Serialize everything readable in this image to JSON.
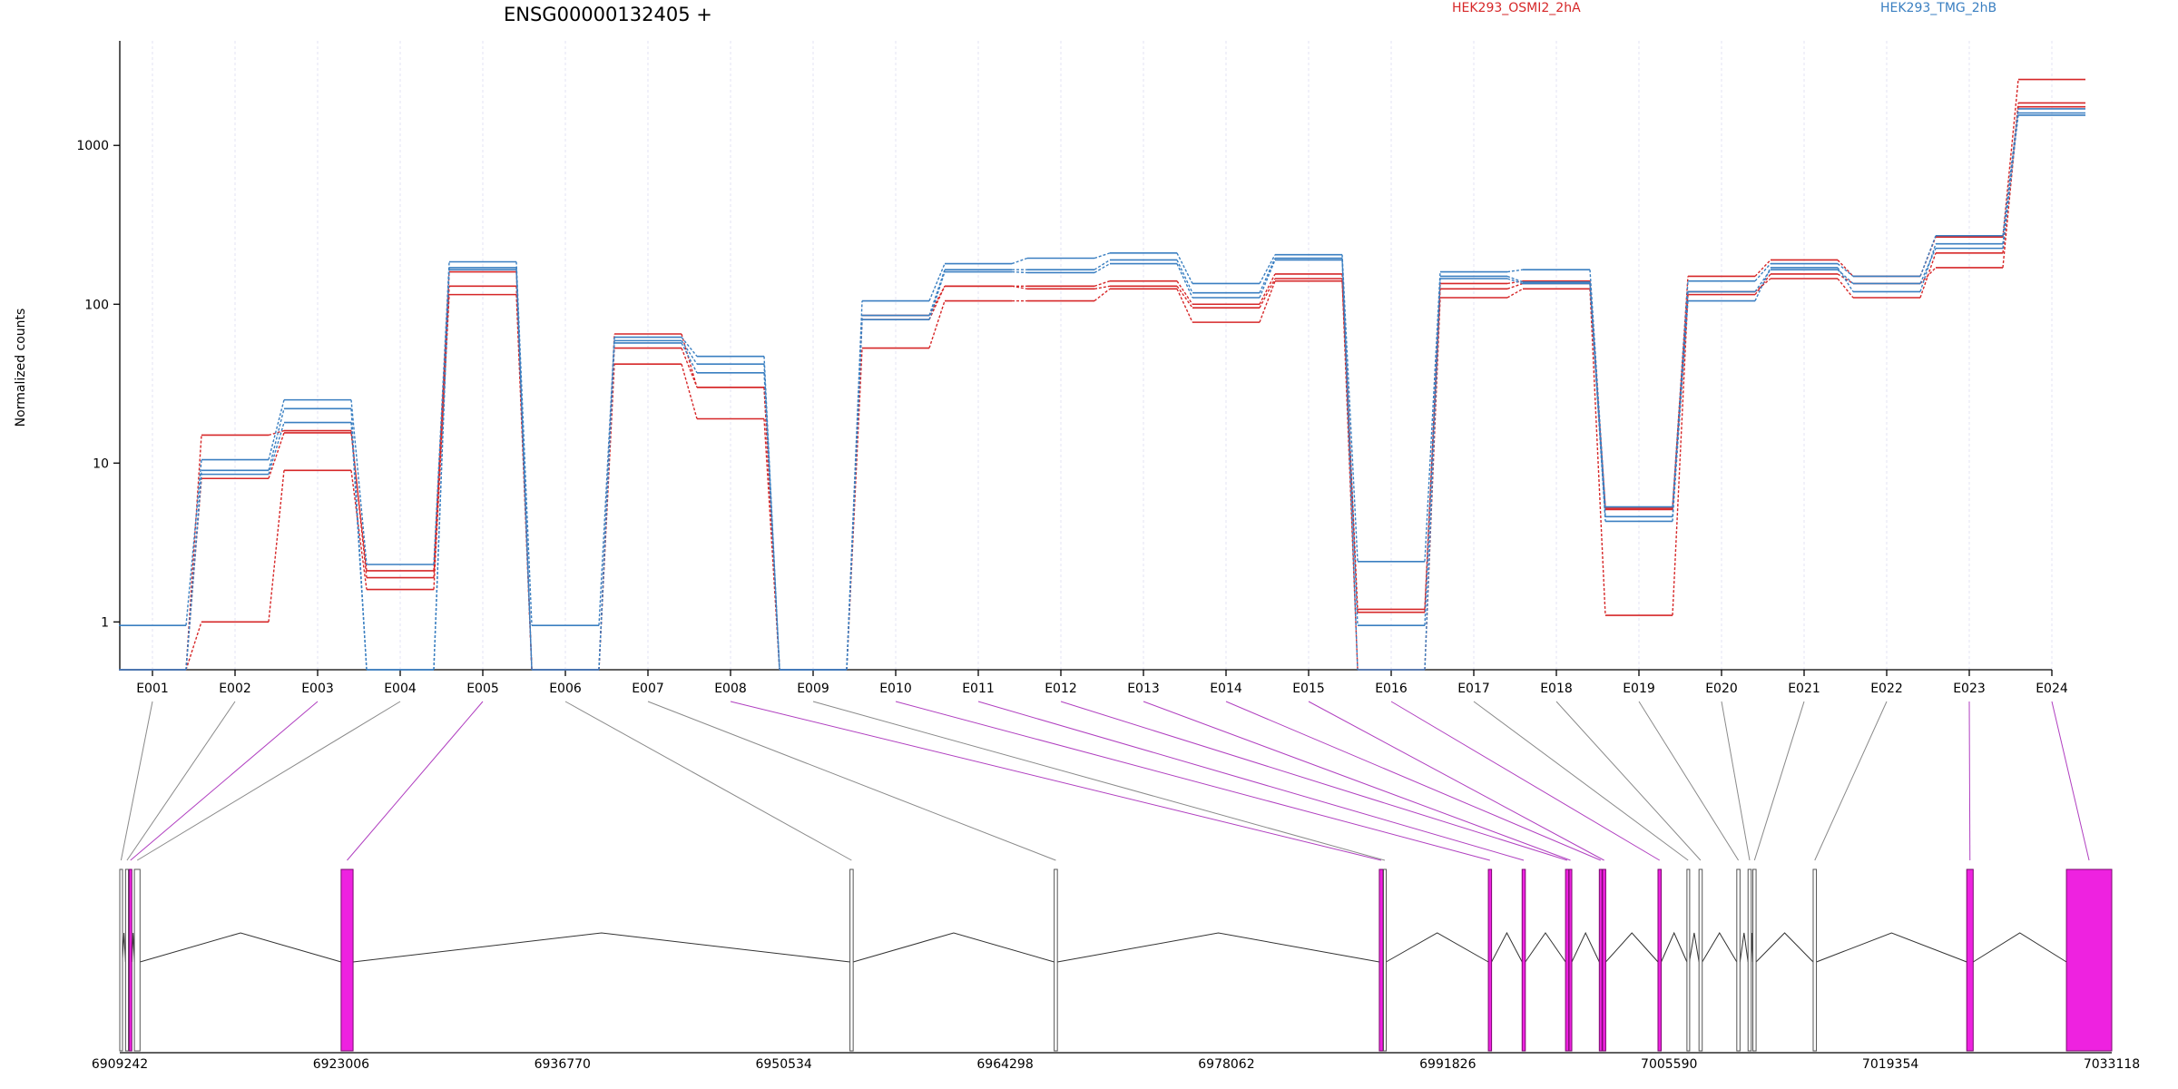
{
  "chart_data": {
    "type": "line",
    "title": "ENSG00000132405 +",
    "ylabel": "Normalized counts",
    "yscale": "log",
    "ylim": [
      0.5,
      3500
    ],
    "yticks": [
      "1",
      "10",
      "100",
      "1000"
    ],
    "categories": [
      "E001",
      "E002",
      "E003",
      "E004",
      "E005",
      "E006",
      "E007",
      "E008",
      "E009",
      "E010",
      "E011",
      "E012",
      "E013",
      "E014",
      "E015",
      "E016",
      "E017",
      "E018",
      "E019",
      "E020",
      "E021",
      "E022",
      "E023",
      "E024"
    ],
    "colors": {
      "HEK293_OSMI2_2hA": "#d62728",
      "HEK293_TMG_2hB": "#3a7fc1",
      "exon_highlight": "#ee22e0",
      "exon_default": "#bbbbbb",
      "gridline": "#e3e3f3"
    },
    "legend": [
      "HEK293_OSMI2_2hA",
      "HEK293_TMG_2hB"
    ],
    "series": [
      {
        "group": "HEK293_OSMI2_2hA",
        "values": [
          0.5,
          15,
          16,
          1.9,
          130,
          0.5,
          65,
          30,
          0.5,
          80,
          130,
          130,
          140,
          100,
          155,
          1.2,
          135,
          140,
          5.2,
          150,
          190,
          150,
          265,
          2600
        ]
      },
      {
        "group": "HEK293_OSMI2_2hA",
        "values": [
          0.5,
          8,
          15.5,
          2.1,
          160,
          0.5,
          53,
          30,
          0.5,
          85,
          130,
          125,
          130,
          95,
          145,
          1.15,
          125,
          135,
          5.1,
          120,
          145,
          110,
          210,
          1850
        ]
      },
      {
        "group": "HEK293_OSMI2_2hA",
        "values": [
          0.5,
          1,
          9,
          1.6,
          115,
          0.5,
          42,
          19,
          0.5,
          53,
          105,
          105,
          125,
          77,
          140,
          0.5,
          110,
          125,
          1.1,
          115,
          155,
          135,
          170,
          1750
        ]
      },
      {
        "group": "HEK293_TMG_2hB",
        "values": [
          0.95,
          10.5,
          25,
          2.3,
          185,
          0.95,
          62,
          47,
          0.5,
          105,
          180,
          195,
          210,
          135,
          205,
          2.4,
          160,
          165,
          5.3,
          140,
          180,
          150,
          270,
          1700
        ]
      },
      {
        "group": "HEK293_TMG_2hB",
        "values": [
          0.5,
          9,
          22,
          0.5,
          170,
          0.5,
          59,
          42,
          0.5,
          85,
          165,
          165,
          190,
          118,
          195,
          0.95,
          150,
          138,
          4.6,
          105,
          170,
          120,
          240,
          1550
        ]
      },
      {
        "group": "HEK293_TMG_2hB",
        "values": [
          0.5,
          8.5,
          18,
          0.5,
          165,
          0.5,
          57,
          37,
          0.5,
          80,
          160,
          158,
          180,
          110,
          190,
          0.5,
          145,
          135,
          4.3,
          120,
          165,
          135,
          225,
          1600
        ]
      }
    ],
    "genomic_axis": {
      "start": 6909242,
      "end": 7033118,
      "tick_labels": [
        "6909242",
        "6923006",
        "6936770",
        "6950534",
        "6964298",
        "6978062",
        "6991826",
        "7005590",
        "7019354",
        "7033118"
      ]
    },
    "exons": [
      {
        "id": "E001",
        "start": 6909242,
        "end": 6909400,
        "highlight": false
      },
      {
        "id": "E002",
        "start": 6909600,
        "end": 6909780,
        "highlight": false
      },
      {
        "id": "E003",
        "start": 6909820,
        "end": 6909990,
        "highlight": true
      },
      {
        "id": "E004",
        "start": 6910150,
        "end": 6910500,
        "highlight": false
      },
      {
        "id": "E005",
        "start": 6923006,
        "end": 6923750,
        "highlight": true
      },
      {
        "id": "E006",
        "start": 6954650,
        "end": 6954850,
        "highlight": false
      },
      {
        "id": "E007",
        "start": 6967350,
        "end": 6967550,
        "highlight": false
      },
      {
        "id": "E008",
        "start": 6987570,
        "end": 6987800,
        "highlight": true
      },
      {
        "id": "E009",
        "start": 6987830,
        "end": 6987990,
        "highlight": false
      },
      {
        "id": "E010",
        "start": 6994350,
        "end": 6994550,
        "highlight": true
      },
      {
        "id": "E011",
        "start": 6996450,
        "end": 6996650,
        "highlight": true
      },
      {
        "id": "E012",
        "start": 6999150,
        "end": 6999350,
        "highlight": true
      },
      {
        "id": "E013",
        "start": 6999370,
        "end": 6999540,
        "highlight": true
      },
      {
        "id": "E014",
        "start": 7001250,
        "end": 7001420,
        "highlight": true
      },
      {
        "id": "E015",
        "start": 7001450,
        "end": 7001650,
        "highlight": true
      },
      {
        "id": "E016",
        "start": 7004900,
        "end": 7005100,
        "highlight": true
      },
      {
        "id": "E017",
        "start": 7006700,
        "end": 7006850,
        "highlight": false
      },
      {
        "id": "E018",
        "start": 7007450,
        "end": 7007650,
        "highlight": false
      },
      {
        "id": "E019",
        "start": 7009800,
        "end": 7010000,
        "highlight": false
      },
      {
        "id": "E020",
        "start": 7010500,
        "end": 7010700,
        "highlight": false
      },
      {
        "id": "E021",
        "start": 7010800,
        "end": 7011000,
        "highlight": false
      },
      {
        "id": "E022",
        "start": 7014550,
        "end": 7014750,
        "highlight": false
      },
      {
        "id": "E023",
        "start": 7024100,
        "end": 7024500,
        "highlight": true
      },
      {
        "id": "E024",
        "start": 7030300,
        "end": 7033118,
        "highlight": true
      }
    ]
  }
}
